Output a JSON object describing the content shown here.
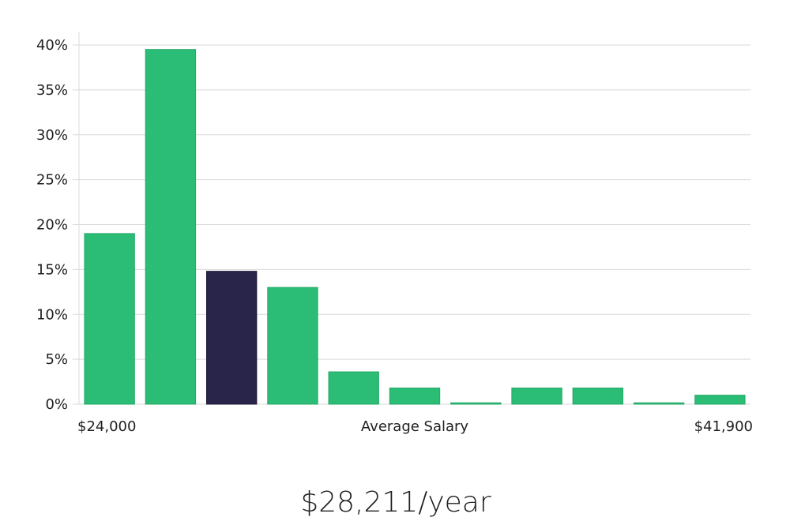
{
  "colors": {
    "bar": "#2bbd75",
    "bar_highlight": "#28244a",
    "grid": "#d9d9d9",
    "axis": "#d9d9d9",
    "text": "#1f1f1f"
  },
  "chart_data": {
    "type": "bar",
    "title": "",
    "xlabel": "Average Salary",
    "ylabel": "",
    "x_start_label": "$24,000",
    "x_end_label": "$41,900",
    "ylim": [
      0,
      40
    ],
    "yticks": [
      0,
      5,
      10,
      15,
      20,
      25,
      30,
      35,
      40
    ],
    "ytick_labels": [
      "0%",
      "5%",
      "10%",
      "15%",
      "20%",
      "25%",
      "30%",
      "35%",
      "40%"
    ],
    "values": [
      19,
      39.5,
      14.8,
      13,
      3.6,
      1.8,
      0.15,
      1.8,
      1.8,
      0.15,
      1.0
    ],
    "highlight_index": 2
  },
  "summary": {
    "salary_text": "$28,211/year"
  }
}
